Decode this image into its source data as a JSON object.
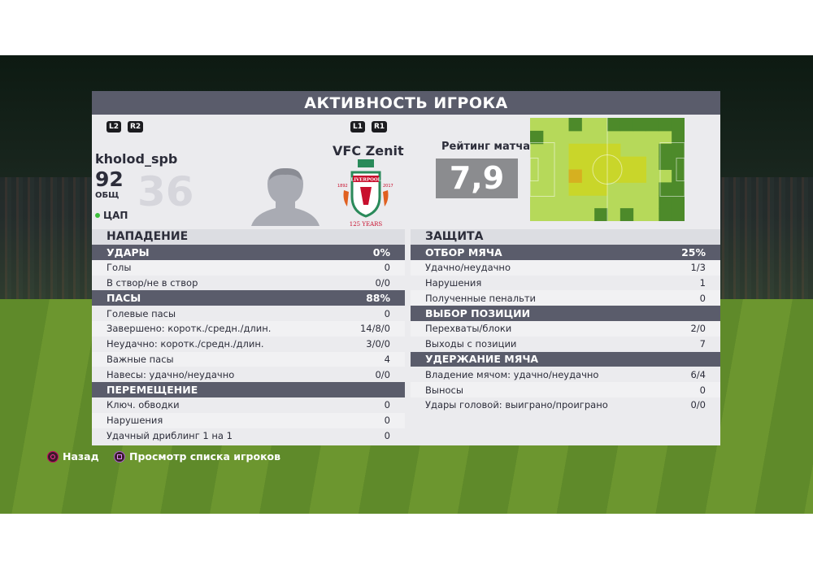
{
  "title": "АКТИВНОСТЬ ИГРОКА",
  "buttons": {
    "l2": "L2",
    "r2": "R2",
    "l1": "L1",
    "r1": "R1"
  },
  "player": {
    "name": "kholod_spb",
    "number": "36",
    "overall": "92",
    "overall_label": "ОБЩ",
    "position": "ЦАП",
    "status_color": "#3cbf3c"
  },
  "club": {
    "name": "VFC Zenit",
    "crest_text": "LIVERPOOL",
    "crest_years_left": "1892",
    "crest_years_right": "2017",
    "crest_sub": "125 YEARS"
  },
  "rating": {
    "label": "Рейтинг матча",
    "value": "7,9"
  },
  "heatmap": {
    "cols": 12,
    "rows": 8,
    "dark": [
      [
        3,
        0
      ],
      [
        6,
        0
      ],
      [
        7,
        0
      ],
      [
        8,
        0
      ],
      [
        9,
        0
      ],
      [
        10,
        0
      ],
      [
        11,
        0
      ],
      [
        11,
        1
      ],
      [
        0,
        1
      ],
      [
        10,
        2
      ],
      [
        11,
        2
      ],
      [
        10,
        3
      ],
      [
        11,
        3
      ],
      [
        11,
        4
      ],
      [
        10,
        5
      ],
      [
        11,
        5
      ],
      [
        10,
        6
      ],
      [
        11,
        6
      ],
      [
        10,
        7
      ],
      [
        11,
        7
      ],
      [
        5,
        7
      ],
      [
        7,
        7
      ]
    ],
    "yellow": [
      [
        3,
        2
      ],
      [
        4,
        2
      ],
      [
        5,
        2
      ],
      [
        6,
        2
      ],
      [
        3,
        3
      ],
      [
        4,
        3
      ],
      [
        5,
        3
      ],
      [
        6,
        3
      ],
      [
        7,
        3
      ],
      [
        8,
        3
      ],
      [
        3,
        4
      ],
      [
        4,
        4
      ],
      [
        5,
        4
      ],
      [
        6,
        4
      ],
      [
        7,
        4
      ],
      [
        8,
        4
      ],
      [
        3,
        5
      ],
      [
        4,
        5
      ],
      [
        5,
        5
      ]
    ],
    "orange": [
      [
        3,
        4
      ]
    ],
    "colors": {
      "light": "#b6d95a",
      "dark": "#4d8a2a",
      "yellow": "#c9d62a",
      "orange": "#d6b020"
    }
  },
  "attack": {
    "title": "НАПАДЕНИЕ",
    "rows": [
      {
        "label": "УДАРЫ",
        "value": "0%",
        "cat": true
      },
      {
        "label": "Голы",
        "value": "0"
      },
      {
        "label": "В створ/не в створ",
        "value": "0/0"
      },
      {
        "label": "ПАСЫ",
        "value": "88%",
        "cat": true
      },
      {
        "label": "Голевые пасы",
        "value": "0"
      },
      {
        "label": "Завершено: коротк./средн./длин.",
        "value": "14/8/0"
      },
      {
        "label": "Неудачно: коротк./средн./длин.",
        "value": "3/0/0"
      },
      {
        "label": "Важные пасы",
        "value": "4"
      },
      {
        "label": "Навесы: удачно/неудачно",
        "value": "0/0"
      },
      {
        "label": "ПЕРЕМЕЩЕНИЕ",
        "value": "",
        "cat": true
      },
      {
        "label": "Ключ. обводки",
        "value": "0"
      },
      {
        "label": "Нарушения",
        "value": "0"
      },
      {
        "label": "Удачный дриблинг 1 на 1",
        "value": "0"
      }
    ]
  },
  "defense": {
    "title": "ЗАЩИТА",
    "rows": [
      {
        "label": "ОТБОР МЯЧА",
        "value": "25%",
        "cat": true
      },
      {
        "label": "Удачно/неудачно",
        "value": "1/3"
      },
      {
        "label": "Нарушения",
        "value": "1"
      },
      {
        "label": "Полученные пенальти",
        "value": "0"
      },
      {
        "label": "ВЫБОР ПОЗИЦИИ",
        "value": "",
        "cat": true
      },
      {
        "label": "Перехваты/блоки",
        "value": "2/0"
      },
      {
        "label": "Выходы с позиции",
        "value": "7"
      },
      {
        "label": "УДЕРЖАНИЕ МЯЧА",
        "value": "",
        "cat": true
      },
      {
        "label": "Владение мячом: удачно/неудачно",
        "value": "6/4"
      },
      {
        "label": "Выносы",
        "value": "0"
      },
      {
        "label": "Удары головой: выиграно/проиграно",
        "value": "0/0"
      }
    ]
  },
  "footer": {
    "back": "Назад",
    "player_list": "Просмотр списка игроков"
  }
}
